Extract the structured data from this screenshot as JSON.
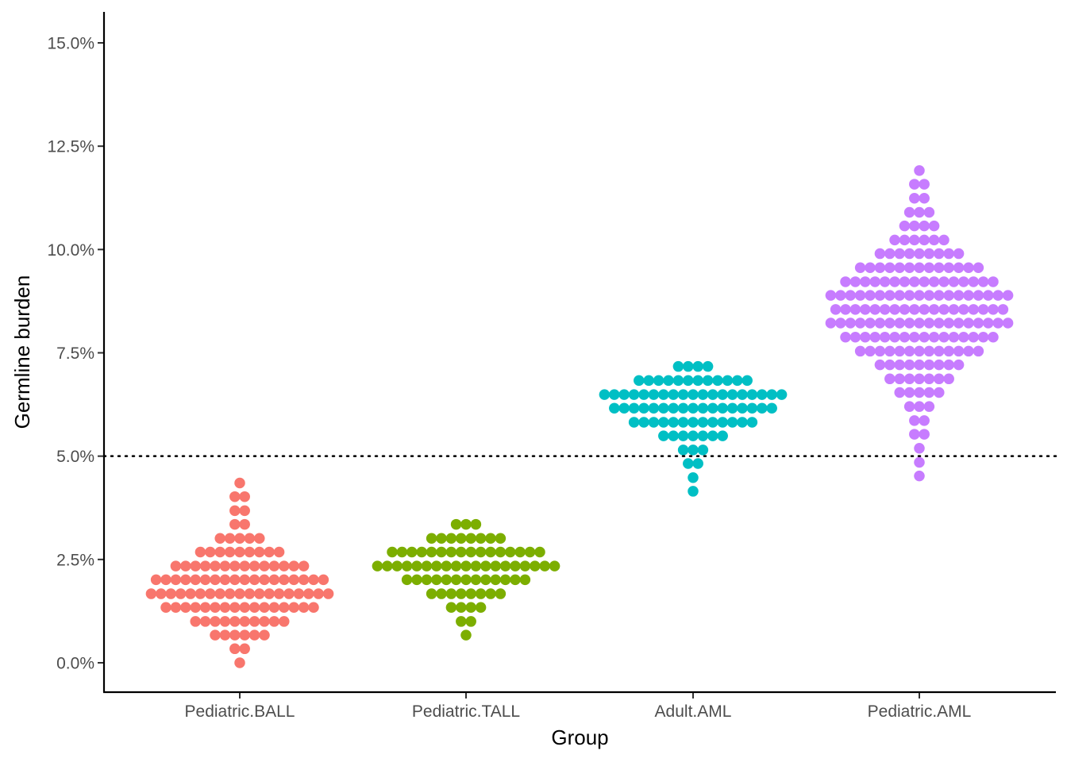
{
  "chart_data": {
    "type": "dotplot",
    "xlabel": "Group",
    "ylabel": "Germline burden",
    "ylim": [
      -0.7,
      15.7
    ],
    "yticks": [
      0,
      2.5,
      5,
      7.5,
      10,
      12.5,
      15
    ],
    "ytick_labels": [
      "0.0%",
      "2.5%",
      "5.0%",
      "7.5%",
      "10.0%",
      "12.5%",
      "15.0%"
    ],
    "reference_line": {
      "y": 5.0,
      "style": "dotted",
      "color": "#000000"
    },
    "grid": false,
    "legend": "none",
    "categories": [
      "Pediatric.BALL",
      "Pediatric.TALL",
      "Adult.AML",
      "Pediatric.AML"
    ],
    "series": [
      {
        "name": "Pediatric.BALL",
        "color": "#F8766D",
        "bins": [
          {
            "y": 0.0,
            "count": 1
          },
          {
            "y": 0.34,
            "count": 2
          },
          {
            "y": 0.67,
            "count": 6
          },
          {
            "y": 1.0,
            "count": 10
          },
          {
            "y": 1.34,
            "count": 16
          },
          {
            "y": 1.67,
            "count": 19
          },
          {
            "y": 2.01,
            "count": 18
          },
          {
            "y": 2.34,
            "count": 14
          },
          {
            "y": 2.68,
            "count": 9
          },
          {
            "y": 3.01,
            "count": 5
          },
          {
            "y": 3.35,
            "count": 2
          },
          {
            "y": 3.68,
            "count": 2
          },
          {
            "y": 4.02,
            "count": 2
          },
          {
            "y": 4.35,
            "count": 1
          }
        ]
      },
      {
        "name": "Pediatric.TALL",
        "color": "#7CAE00",
        "bins": [
          {
            "y": 0.67,
            "count": 1
          },
          {
            "y": 1.0,
            "count": 2
          },
          {
            "y": 1.34,
            "count": 4
          },
          {
            "y": 1.67,
            "count": 8
          },
          {
            "y": 2.01,
            "count": 13
          },
          {
            "y": 2.34,
            "count": 19
          },
          {
            "y": 2.68,
            "count": 16
          },
          {
            "y": 3.01,
            "count": 8
          },
          {
            "y": 3.35,
            "count": 3
          }
        ]
      },
      {
        "name": "Adult.AML",
        "color": "#00BFC4",
        "bins": [
          {
            "y": 4.15,
            "count": 1
          },
          {
            "y": 4.48,
            "count": 1
          },
          {
            "y": 4.82,
            "count": 2
          },
          {
            "y": 5.15,
            "count": 3
          },
          {
            "y": 5.49,
            "count": 7
          },
          {
            "y": 5.82,
            "count": 13
          },
          {
            "y": 6.16,
            "count": 17
          },
          {
            "y": 6.49,
            "count": 19
          },
          {
            "y": 6.83,
            "count": 12
          },
          {
            "y": 7.17,
            "count": 4
          }
        ]
      },
      {
        "name": "Pediatric.AML",
        "color": "#C77CFF",
        "bins": [
          {
            "y": 4.52,
            "count": 1
          },
          {
            "y": 4.85,
            "count": 1
          },
          {
            "y": 5.19,
            "count": 1
          },
          {
            "y": 5.53,
            "count": 2
          },
          {
            "y": 5.86,
            "count": 2
          },
          {
            "y": 6.2,
            "count": 3
          },
          {
            "y": 6.54,
            "count": 5
          },
          {
            "y": 6.87,
            "count": 7
          },
          {
            "y": 7.21,
            "count": 9
          },
          {
            "y": 7.54,
            "count": 13
          },
          {
            "y": 7.88,
            "count": 16
          },
          {
            "y": 8.22,
            "count": 19
          },
          {
            "y": 8.55,
            "count": 18
          },
          {
            "y": 8.89,
            "count": 19
          },
          {
            "y": 9.22,
            "count": 16
          },
          {
            "y": 9.56,
            "count": 13
          },
          {
            "y": 9.9,
            "count": 9
          },
          {
            "y": 10.23,
            "count": 6
          },
          {
            "y": 10.57,
            "count": 4
          },
          {
            "y": 10.9,
            "count": 3
          },
          {
            "y": 11.24,
            "count": 2
          },
          {
            "y": 11.58,
            "count": 2
          },
          {
            "y": 11.91,
            "count": 1
          }
        ]
      }
    ]
  }
}
